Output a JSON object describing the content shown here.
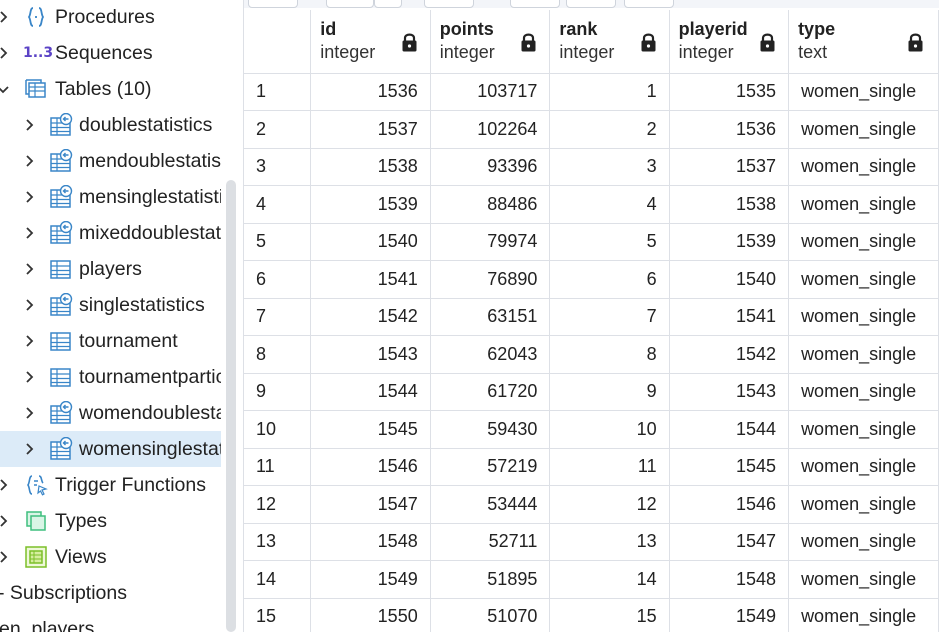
{
  "sidebar": {
    "procedures": "Procedures",
    "sequences": "Sequences",
    "sequences_icon_text": "1..3",
    "tables": "Tables (10)",
    "table_items": [
      "doublestatistics",
      "mendoublestatistics",
      "mensinglestatistics",
      "mixeddoublestatistics",
      "players",
      "singlestatistics",
      "tournament",
      "tournamentparticipants",
      "womendoublestatistics",
      "womensinglestatistics"
    ],
    "trigger_functions": "Trigger Functions",
    "types": "Types",
    "views": "Views",
    "subscriptions": "Subscriptions",
    "bottom_partial": "en_players"
  },
  "grid": {
    "columns": [
      {
        "name": "id",
        "type": "integer"
      },
      {
        "name": "points",
        "type": "integer"
      },
      {
        "name": "rank",
        "type": "integer"
      },
      {
        "name": "playerid",
        "type": "integer"
      },
      {
        "name": "type",
        "type": "text"
      }
    ],
    "rows": [
      {
        "n": "1",
        "id": "1536",
        "points": "103717",
        "rank": "1",
        "playerid": "1535",
        "type": "women_single"
      },
      {
        "n": "2",
        "id": "1537",
        "points": "102264",
        "rank": "2",
        "playerid": "1536",
        "type": "women_single"
      },
      {
        "n": "3",
        "id": "1538",
        "points": "93396",
        "rank": "3",
        "playerid": "1537",
        "type": "women_single"
      },
      {
        "n": "4",
        "id": "1539",
        "points": "88486",
        "rank": "4",
        "playerid": "1538",
        "type": "women_single"
      },
      {
        "n": "5",
        "id": "1540",
        "points": "79974",
        "rank": "5",
        "playerid": "1539",
        "type": "women_single"
      },
      {
        "n": "6",
        "id": "1541",
        "points": "76890",
        "rank": "6",
        "playerid": "1540",
        "type": "women_single"
      },
      {
        "n": "7",
        "id": "1542",
        "points": "63151",
        "rank": "7",
        "playerid": "1541",
        "type": "women_single"
      },
      {
        "n": "8",
        "id": "1543",
        "points": "62043",
        "rank": "8",
        "playerid": "1542",
        "type": "women_single"
      },
      {
        "n": "9",
        "id": "1544",
        "points": "61720",
        "rank": "9",
        "playerid": "1543",
        "type": "women_single"
      },
      {
        "n": "10",
        "id": "1545",
        "points": "59430",
        "rank": "10",
        "playerid": "1544",
        "type": "women_single"
      },
      {
        "n": "11",
        "id": "1546",
        "points": "57219",
        "rank": "11",
        "playerid": "1545",
        "type": "women_single"
      },
      {
        "n": "12",
        "id": "1547",
        "points": "53444",
        "rank": "12",
        "playerid": "1546",
        "type": "women_single"
      },
      {
        "n": "13",
        "id": "1548",
        "points": "52711",
        "rank": "13",
        "playerid": "1547",
        "type": "women_single"
      },
      {
        "n": "14",
        "id": "1549",
        "points": "51895",
        "rank": "14",
        "playerid": "1548",
        "type": "women_single"
      },
      {
        "n": "15",
        "id": "1550",
        "points": "51070",
        "rank": "15",
        "playerid": "1549",
        "type": "women_single"
      }
    ]
  },
  "colors": {
    "selected_row": "#dcebf8",
    "table_icon": "#3a86c8",
    "sequence_icon": "#5b43c6",
    "types_icon": "#3fbf7f",
    "views_icon": "#7bbf28"
  },
  "icons": {
    "procedures": "procedure-braces-icon",
    "sequences": "sequence-icon",
    "tables": "tables-group-icon",
    "table": "table-icon",
    "partitioned_table": "table-inherit-icon",
    "trigger_functions": "trigger-function-icon",
    "types": "types-icon",
    "views": "views-icon",
    "column_lock": "lock-icon"
  }
}
